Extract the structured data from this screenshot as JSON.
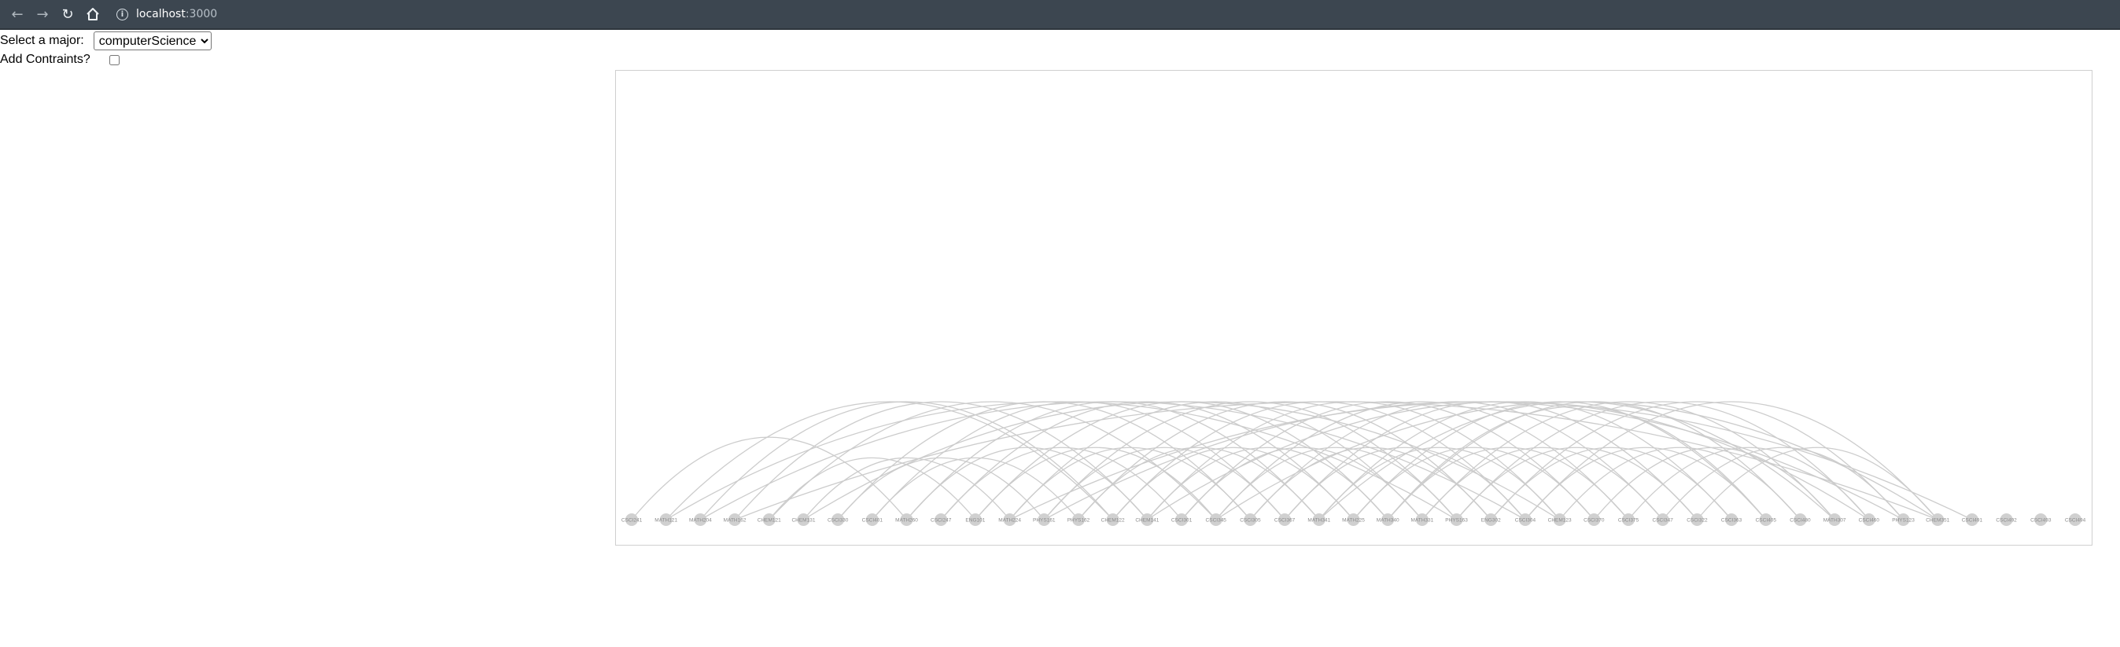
{
  "browser": {
    "url_host": "localhost",
    "url_port": ":3000",
    "icons": [
      "back-arrow-icon",
      "forward-arrow-icon",
      "reload-icon",
      "home-icon",
      "info-icon"
    ]
  },
  "controls": {
    "major_label": "Select a major:",
    "major_selected": "computerScience",
    "constraints_label": "Add Contraints?",
    "constraints_checked": false
  },
  "arc_diagram": {
    "node_color": "#d0d0d0",
    "link_color": "#cccccc",
    "nodes": [
      "CSCI241",
      "MATH121",
      "MATH204",
      "MATH162",
      "CHEM121",
      "CHEM131",
      "CSCI330",
      "CSCI401",
      "MATH260",
      "CSCI247",
      "ENG101",
      "MATH224",
      "PHYS161",
      "PHYS162",
      "CHEM122",
      "CHEM141",
      "CSCI301",
      "CSCI345",
      "CSCI305",
      "CSCI367",
      "MATH341",
      "MATH225",
      "MATH340",
      "MATH331",
      "PHYS163",
      "ENG302",
      "CSCI304",
      "CHEM123",
      "CSCI370",
      "CSCI375",
      "CSCI347",
      "CSCI322",
      "CSCI363",
      "CSCI405",
      "CSCI480",
      "MATH307",
      "CSCI460",
      "PHYS123",
      "CHEM351",
      "CSCI491",
      "CSCI492",
      "CSCI493",
      "CSCI494"
    ],
    "links": [
      [
        0,
        8
      ],
      [
        1,
        14
      ],
      [
        1,
        24
      ],
      [
        2,
        14
      ],
      [
        2,
        26
      ],
      [
        3,
        15
      ],
      [
        3,
        38
      ],
      [
        4,
        10
      ],
      [
        4,
        17
      ],
      [
        5,
        11
      ],
      [
        5,
        27
      ],
      [
        6,
        12
      ],
      [
        6,
        18
      ],
      [
        7,
        13
      ],
      [
        7,
        19
      ],
      [
        8,
        15
      ],
      [
        8,
        20
      ],
      [
        9,
        16
      ],
      [
        9,
        21
      ],
      [
        10,
        17
      ],
      [
        10,
        22
      ],
      [
        11,
        18
      ],
      [
        11,
        23
      ],
      [
        12,
        19
      ],
      [
        12,
        24
      ],
      [
        13,
        20
      ],
      [
        13,
        25
      ],
      [
        14,
        21
      ],
      [
        14,
        26
      ],
      [
        15,
        22
      ],
      [
        15,
        27
      ],
      [
        16,
        23
      ],
      [
        16,
        28
      ],
      [
        17,
        24
      ],
      [
        17,
        29
      ],
      [
        18,
        25
      ],
      [
        18,
        30
      ],
      [
        19,
        26
      ],
      [
        19,
        31
      ],
      [
        20,
        27
      ],
      [
        20,
        32
      ],
      [
        21,
        28
      ],
      [
        21,
        33
      ],
      [
        22,
        29
      ],
      [
        22,
        34
      ],
      [
        23,
        30
      ],
      [
        23,
        35
      ],
      [
        24,
        31
      ],
      [
        24,
        36
      ],
      [
        25,
        32
      ],
      [
        25,
        37
      ],
      [
        26,
        33
      ],
      [
        26,
        38
      ],
      [
        27,
        34
      ],
      [
        28,
        35
      ],
      [
        29,
        36
      ],
      [
        30,
        37
      ],
      [
        31,
        38
      ],
      [
        11,
        39
      ],
      [
        17,
        38
      ],
      [
        12,
        37
      ],
      [
        15,
        36
      ],
      [
        20,
        35
      ],
      [
        22,
        33
      ]
    ]
  }
}
